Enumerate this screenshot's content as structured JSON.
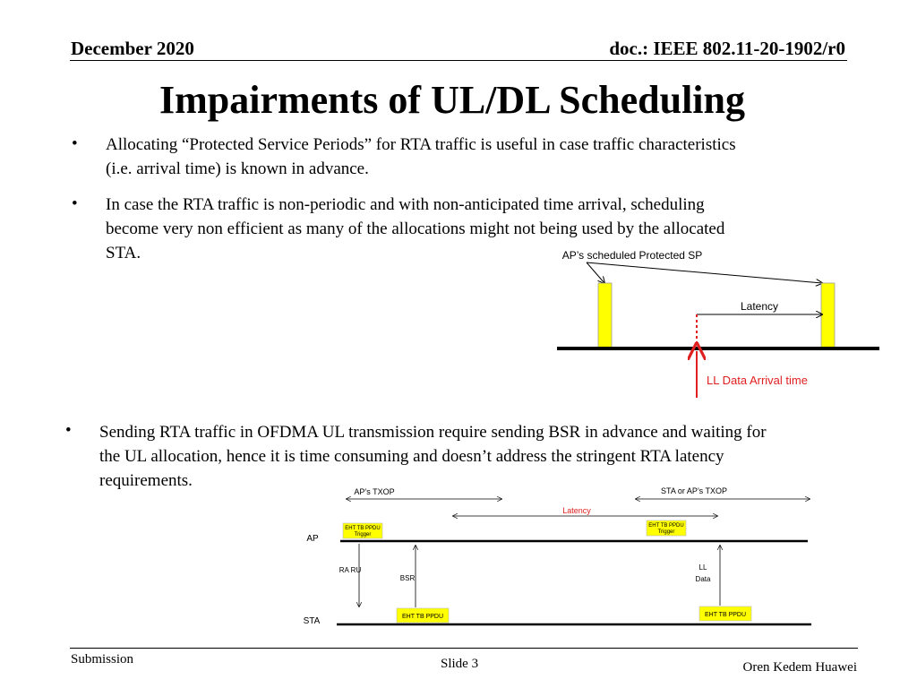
{
  "header": {
    "date": "December 2020",
    "doc": "doc.: IEEE 802.11-20-1902/r0"
  },
  "title": "Impairments of UL/DL Scheduling",
  "bullets": [
    {
      "line1": "Allocating “Protected Service Periods” for RTA traffic is useful in case traffic characteristics",
      "line2": "(i.e. arrival time) is known in advance."
    },
    {
      "line1": "In case the RTA traffic is non-periodic and with non-anticipated time arrival, scheduling",
      "line2": "become very non efficient as many of the allocations might not being used by the allocated",
      "line3": "STA."
    },
    {
      "line1": "Sending RTA traffic in OFDMA UL transmission require sending BSR in advance and waiting for",
      "line2": "the UL allocation, hence it is time consuming and doesn’t address the stringent RTA latency",
      "line3": "requirements."
    }
  ],
  "bullet_symbol": "•",
  "diagram1": {
    "sp_label": "AP’s scheduled Protected SP",
    "latency_label": "Latency",
    "arrival_label": "LL Data Arrival time",
    "accent_color": "#e02020",
    "block_color": "#ffff00"
  },
  "diagram2": {
    "aps_txop": "AP’s TXOP",
    "sta_or_ap_txop": "STA or AP’s TXOP",
    "latency": "Latency",
    "ap_label": "AP",
    "sta_label": "STA",
    "trigger1_line1": "EHT TB PPDU",
    "trigger1_line2": "Trigger",
    "trigger2_line1": "EHT TB PPDU",
    "trigger2_line2": "Trigger",
    "ra_ru": "RA RU",
    "bsr": "BSR",
    "ll_line1": "LL",
    "ll_line2": "Data",
    "sta_ppdu1": "EHT TB PPDU",
    "sta_ppdu2": "EHT TB PPDU"
  },
  "footer": {
    "submission": "Submission",
    "slide": "Slide 3",
    "author": "Oren Kedem Huawei"
  }
}
